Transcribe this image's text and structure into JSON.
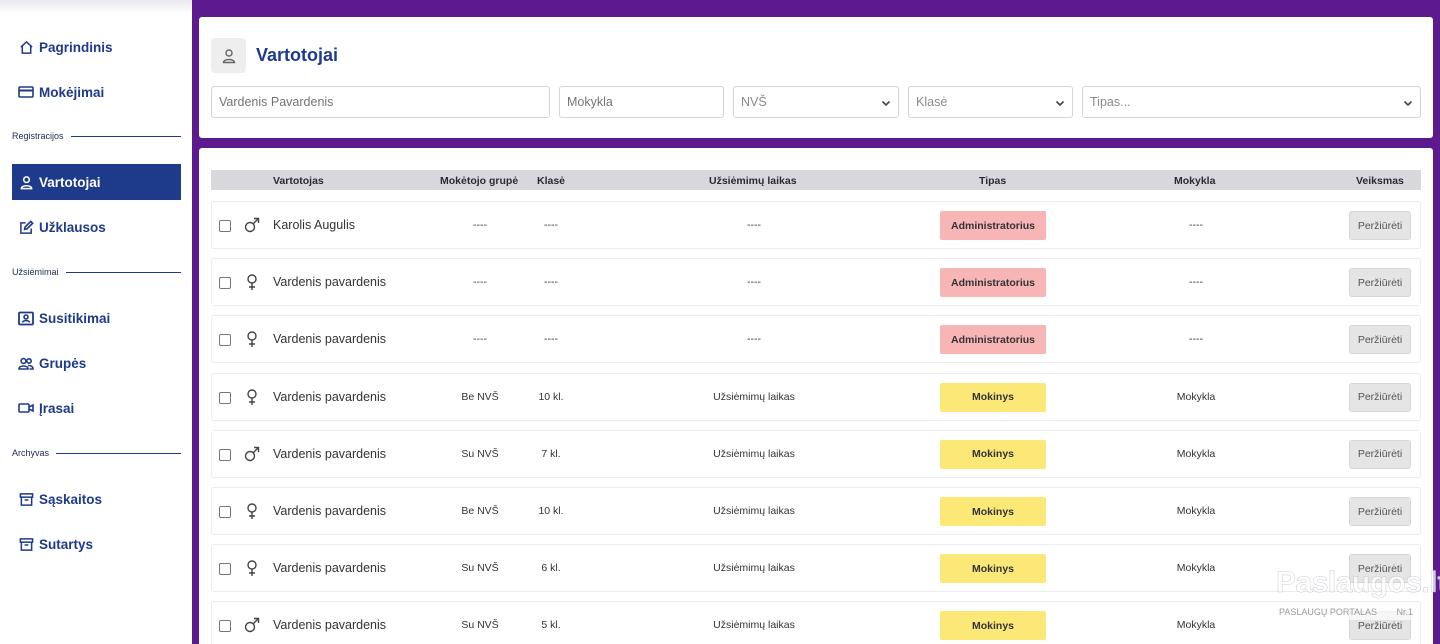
{
  "sidebar": {
    "items": [
      {
        "id": "pagrindinis",
        "label": "Pagrindinis",
        "icon": "home-icon"
      },
      {
        "id": "mokejimai",
        "label": "Mokėjimai",
        "icon": "credit-card-icon"
      },
      {
        "id": "vartotojai",
        "label": "Vartotojai",
        "icon": "user-icon",
        "active": true
      },
      {
        "id": "uzklausos",
        "label": "Užklausos",
        "icon": "edit-icon"
      },
      {
        "id": "susitikimai",
        "label": "Susitikimai",
        "icon": "contact-card-icon"
      },
      {
        "id": "grupes",
        "label": "Grupės",
        "icon": "users-icon"
      },
      {
        "id": "irasai",
        "label": "Įrasai",
        "icon": "video-icon"
      },
      {
        "id": "saskaitos",
        "label": "Sąskaitos",
        "icon": "archive-icon"
      },
      {
        "id": "sutartys",
        "label": "Sutartys",
        "icon": "archive-icon"
      }
    ],
    "sections": {
      "registracijos": "Registracijos",
      "uzsiemimai": "Užsiėmimai",
      "archyvas": "Archyvas"
    }
  },
  "header": {
    "title": "Vartotojai",
    "icon": "user-icon"
  },
  "filters": {
    "name_placeholder": "Vardenis Pavardenis",
    "school_placeholder": "Mokykla",
    "nvs_selected": "NVŠ",
    "class_selected": "Klasė",
    "type_selected": "Tipas..."
  },
  "table": {
    "columns": {
      "user": "Vartotojas",
      "payer_group": "Mokėtojo grupė",
      "class": "Klasė",
      "time": "Užsiėmimų laikas",
      "type": "Tipas",
      "school": "Mokykla",
      "action": "Veiksmas"
    },
    "view_label": "Peržiūrėti",
    "rows": [
      {
        "gender": "male",
        "name": "Karolis Augulis",
        "payer_group": "----",
        "class": "----",
        "time": "----",
        "type": "Administratorius",
        "type_kind": "admin",
        "school": "----"
      },
      {
        "gender": "female",
        "name": "Vardenis pavardenis",
        "payer_group": "----",
        "class": "----",
        "time": "----",
        "type": "Administratorius",
        "type_kind": "admin",
        "school": "----"
      },
      {
        "gender": "female",
        "name": "Vardenis pavardenis",
        "payer_group": "----",
        "class": "----",
        "time": "----",
        "type": "Administratorius",
        "type_kind": "admin",
        "school": "----"
      },
      {
        "gender": "female",
        "name": "Vardenis pavardenis",
        "payer_group": "Be NVŠ",
        "class": "10 kl.",
        "time": "Užsiėmimų laikas",
        "type": "Mokinys",
        "type_kind": "student",
        "school": "Mokykla"
      },
      {
        "gender": "male",
        "name": "Vardenis pavardenis",
        "payer_group": "Su NVŠ",
        "class": "7 kl.",
        "time": "Užsiėmimų laikas",
        "type": "Mokinys",
        "type_kind": "student",
        "school": "Mokykla"
      },
      {
        "gender": "female",
        "name": "Vardenis pavardenis",
        "payer_group": "Be NVŠ",
        "class": "10 kl.",
        "time": "Užsiėmimų laikas",
        "type": "Mokinys",
        "type_kind": "student",
        "school": "Mokykla"
      },
      {
        "gender": "female",
        "name": "Vardenis pavardenis",
        "payer_group": "Su NVŠ",
        "class": "6 kl.",
        "time": "Užsiėmimų laikas",
        "type": "Mokinys",
        "type_kind": "student",
        "school": "Mokykla"
      },
      {
        "gender": "male",
        "name": "Vardenis pavardenis",
        "payer_group": "Su NVŠ",
        "class": "5 kl.",
        "time": "Užsiėmimų laikas",
        "type": "Mokinys",
        "type_kind": "student",
        "school": "Mokykla"
      }
    ]
  },
  "watermark": {
    "brand": "Paslaugos.lt",
    "tagline": "PASLAUGŲ PORTALAS",
    "rank": "Nr.1"
  },
  "colors": {
    "brand_purple": "#5c1a8e",
    "nav_blue": "#1e3a8a",
    "admin_badge": "#f7b5b5",
    "student_badge": "#fbe877"
  }
}
